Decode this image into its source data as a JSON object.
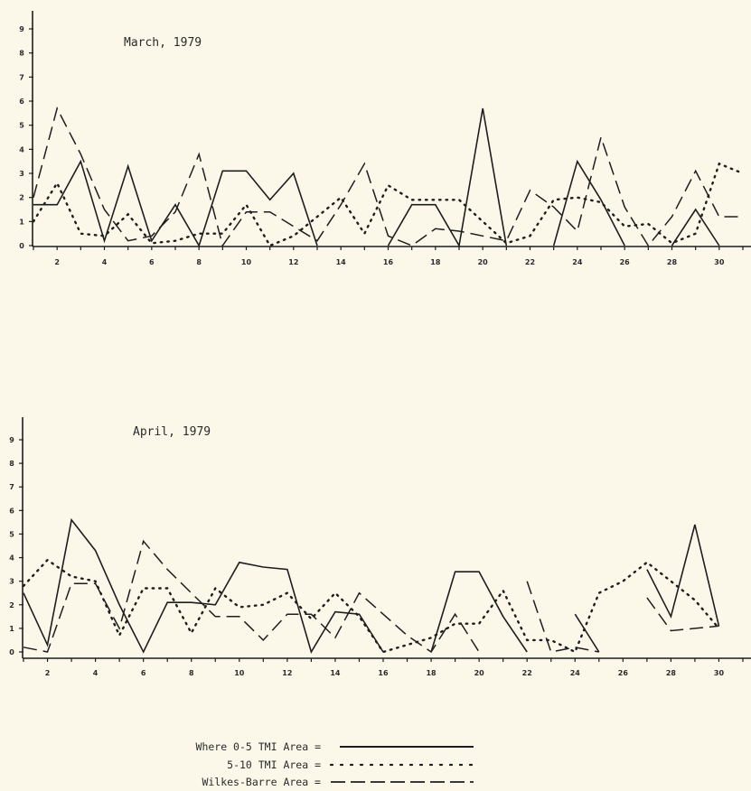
{
  "chart_data": [
    {
      "type": "line",
      "title": "March, 1979",
      "xlim": [
        1,
        31
      ],
      "ylim": [
        0,
        9
      ],
      "xticks": [
        2,
        4,
        6,
        8,
        10,
        12,
        14,
        16,
        18,
        20,
        22,
        24,
        26,
        28,
        30
      ],
      "yticks": [
        1,
        2,
        3,
        4,
        5,
        6,
        7,
        8,
        9
      ],
      "x": [
        1,
        2,
        3,
        4,
        5,
        6,
        7,
        8,
        9,
        10,
        11,
        12,
        13,
        14,
        15,
        16,
        17,
        18,
        19,
        20,
        21,
        22,
        23,
        24,
        25,
        26,
        27,
        28,
        29,
        30,
        31
      ],
      "series": [
        {
          "name": "Where 0-5 TMI Area",
          "style": "solid",
          "values": [
            1.7,
            1.7,
            3.5,
            0.2,
            3.3,
            0.2,
            1.7,
            0.0,
            3.1,
            3.1,
            1.9,
            3.0,
            0.0,
            null,
            null,
            0.0,
            1.7,
            1.7,
            0.0,
            5.7,
            0.0,
            null,
            0.0,
            3.5,
            1.9,
            0.0,
            null,
            0.0,
            1.5,
            0.0,
            null
          ]
        },
        {
          "name": "5-10 TMI Area",
          "style": "dotted",
          "values": [
            1.0,
            2.6,
            0.5,
            0.4,
            1.3,
            0.1,
            0.2,
            0.5,
            0.5,
            1.7,
            0.0,
            0.4,
            1.2,
            2.0,
            0.5,
            2.5,
            1.9,
            1.9,
            1.9,
            1.0,
            0.1,
            0.4,
            1.9,
            2.0,
            1.8,
            0.8,
            0.9,
            0.1,
            0.5,
            3.4,
            3.0
          ]
        },
        {
          "name": "Wilkes-Barre Area",
          "style": "dashed",
          "values": [
            2.0,
            5.7,
            3.8,
            1.5,
            0.2,
            0.4,
            1.4,
            3.8,
            0.0,
            1.4,
            1.4,
            0.8,
            0.2,
            1.7,
            3.4,
            0.4,
            0.0,
            0.7,
            0.6,
            0.4,
            0.2,
            2.3,
            1.6,
            0.6,
            4.5,
            1.6,
            0.0,
            1.2,
            3.1,
            1.2,
            1.2
          ]
        }
      ]
    },
    {
      "type": "line",
      "title": "April, 1979",
      "xlim": [
        1,
        31
      ],
      "ylim": [
        0,
        9
      ],
      "xticks": [
        2,
        4,
        6,
        8,
        10,
        12,
        14,
        16,
        18,
        20,
        22,
        24,
        26,
        28,
        30
      ],
      "yticks": [
        1,
        2,
        3,
        4,
        5,
        6,
        7,
        8,
        9
      ],
      "x": [
        1,
        2,
        3,
        4,
        5,
        6,
        7,
        8,
        9,
        10,
        11,
        12,
        13,
        14,
        15,
        16,
        17,
        18,
        19,
        20,
        21,
        22,
        23,
        24,
        25,
        26,
        27,
        28,
        29,
        30
      ],
      "series": [
        {
          "name": "Where 0-5 TMI Area",
          "style": "solid",
          "values": [
            2.5,
            0.3,
            5.6,
            4.3,
            2.0,
            0.0,
            2.1,
            2.1,
            2.0,
            3.8,
            3.6,
            3.5,
            0.0,
            1.7,
            1.6,
            0.0,
            null,
            0.0,
            3.4,
            3.4,
            1.5,
            0.0,
            null,
            1.6,
            0.0,
            null,
            3.5,
            1.5,
            5.4,
            1.1
          ]
        },
        {
          "name": "5-10 TMI Area",
          "style": "dotted",
          "values": [
            2.8,
            3.9,
            3.2,
            3.0,
            0.7,
            2.7,
            2.7,
            0.8,
            2.7,
            1.9,
            2.0,
            2.5,
            1.4,
            2.5,
            1.5,
            0.0,
            0.3,
            0.6,
            1.2,
            1.2,
            2.6,
            0.5,
            0.5,
            0.0,
            2.5,
            3.0,
            3.8,
            3.0,
            2.2,
            1.0
          ]
        },
        {
          "name": "Wilkes-Barre Area",
          "style": "dashed",
          "values": [
            0.2,
            0.0,
            2.9,
            2.9,
            1.0,
            4.7,
            3.5,
            2.5,
            1.5,
            1.5,
            0.5,
            1.6,
            1.6,
            0.6,
            2.5,
            1.6,
            0.7,
            0.0,
            1.6,
            0.0,
            null,
            3.0,
            0.0,
            0.2,
            0.0,
            null,
            2.3,
            0.9,
            1.0,
            1.1
          ]
        }
      ]
    }
  ],
  "legend": {
    "entries": [
      {
        "label": "Where 0-5 TMI Area =",
        "style": "solid"
      },
      {
        "label": "5-10 TMI Area =",
        "style": "dotted"
      },
      {
        "label": "Wilkes-Barre Area =",
        "style": "dashed"
      }
    ]
  },
  "colors": {
    "background": "#fbf8ea",
    "ink": "#2a2a2a"
  }
}
